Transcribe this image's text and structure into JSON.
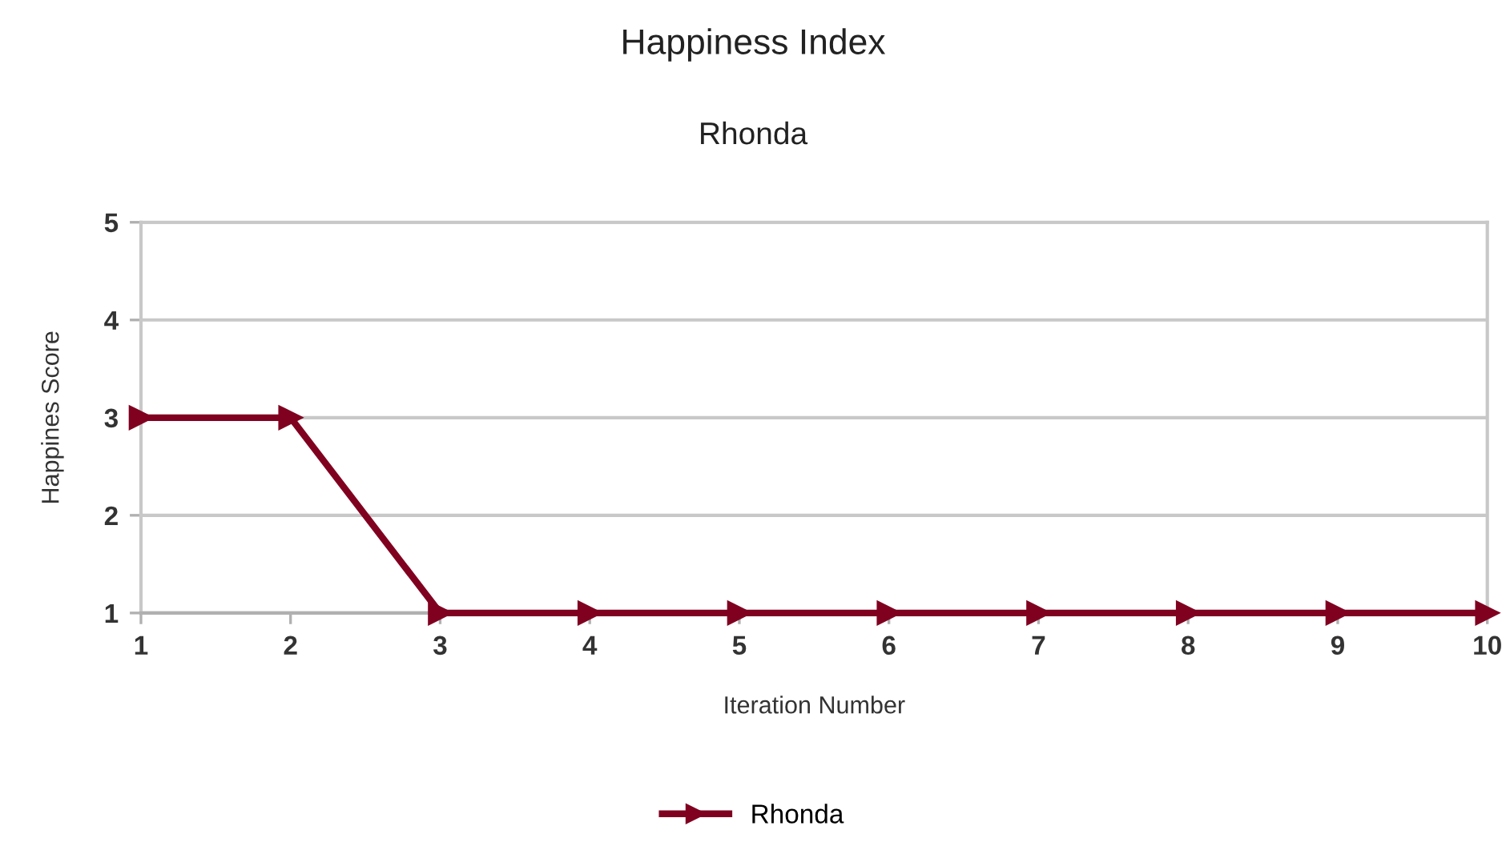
{
  "chart_data": {
    "type": "line",
    "title": "Happiness Index",
    "subtitle": "Rhonda",
    "xlabel": "Iteration Number",
    "ylabel": "Happines Score",
    "x": [
      1,
      2,
      3,
      4,
      5,
      6,
      7,
      8,
      9,
      10
    ],
    "series": [
      {
        "name": "Rhonda",
        "color": "#800020",
        "values": [
          3,
          3,
          1,
          1,
          1,
          1,
          1,
          1,
          1,
          1
        ]
      }
    ],
    "xlim": [
      1,
      10
    ],
    "xticks": [
      1,
      2,
      3,
      4,
      5,
      6,
      7,
      8,
      9,
      10
    ],
    "ylim": [
      1,
      5
    ],
    "yticks": [
      1,
      2,
      3,
      4,
      5
    ],
    "grid": "y",
    "legend": "bottom",
    "marker": "triangle",
    "line_style": "solid"
  }
}
